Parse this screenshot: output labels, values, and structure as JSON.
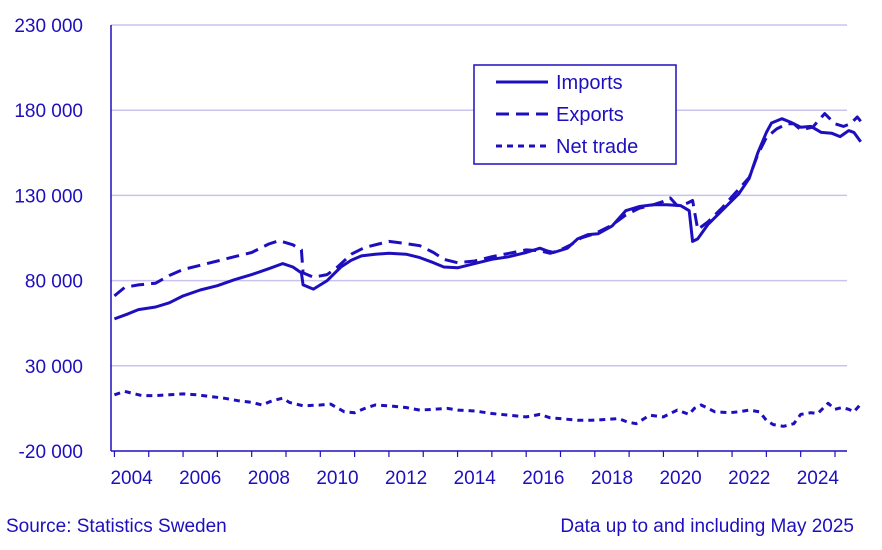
{
  "source": "Source: Statistics Sweden",
  "note": "Data up to and including May 2025",
  "colors": {
    "series": "#1e0fbe",
    "grid": "#c9c4ee",
    "axis": "#1e0fbe"
  },
  "chart_data": {
    "type": "line",
    "title": "",
    "xlabel": "",
    "ylabel": "",
    "xlim": [
      2003.9,
      2025.35
    ],
    "ylim": [
      -20000,
      230000
    ],
    "yticks": [
      -20000,
      30000,
      80000,
      130000,
      180000,
      230000
    ],
    "ytick_labels": [
      "-20 000",
      "30 000",
      "80 000",
      "130 000",
      "180 000",
      "230 000"
    ],
    "xticks": [
      2004,
      2006,
      2008,
      2010,
      2012,
      2014,
      2016,
      2018,
      2020,
      2022,
      2024
    ],
    "grid": "horizontal",
    "legend": "top-center",
    "series": [
      {
        "name": "Imports",
        "style": "solid",
        "points": [
          [
            2004.0,
            57500
          ],
          [
            2004.4,
            60500
          ],
          [
            2004.7,
            63000
          ],
          [
            2005.2,
            64500
          ],
          [
            2005.6,
            67000
          ],
          [
            2006.0,
            71000
          ],
          [
            2006.5,
            74500
          ],
          [
            2007.0,
            77000
          ],
          [
            2007.5,
            80500
          ],
          [
            2008.0,
            83500
          ],
          [
            2008.5,
            87000
          ],
          [
            2008.9,
            90000
          ],
          [
            2009.2,
            88000
          ],
          [
            2009.45,
            84500
          ],
          [
            2009.5,
            77500
          ],
          [
            2009.8,
            75000
          ],
          [
            2010.2,
            80000
          ],
          [
            2010.6,
            88000
          ],
          [
            2010.9,
            92000
          ],
          [
            2011.2,
            94500
          ],
          [
            2011.6,
            95500
          ],
          [
            2012.0,
            96000
          ],
          [
            2012.5,
            95500
          ],
          [
            2012.9,
            93500
          ],
          [
            2013.3,
            90500
          ],
          [
            2013.6,
            88000
          ],
          [
            2014.0,
            87500
          ],
          [
            2014.5,
            90000
          ],
          [
            2015.0,
            92500
          ],
          [
            2015.5,
            94000
          ],
          [
            2016.0,
            96500
          ],
          [
            2016.4,
            99000
          ],
          [
            2016.6,
            97500
          ],
          [
            2016.8,
            96500
          ],
          [
            2017.2,
            99000
          ],
          [
            2017.5,
            104500
          ],
          [
            2017.8,
            107000
          ],
          [
            2018.1,
            107500
          ],
          [
            2018.5,
            112000
          ],
          [
            2018.9,
            121000
          ],
          [
            2019.3,
            123500
          ],
          [
            2019.7,
            124500
          ],
          [
            2020.1,
            124500
          ],
          [
            2020.5,
            124000
          ],
          [
            2020.75,
            121000
          ],
          [
            2020.85,
            103000
          ],
          [
            2021.0,
            104500
          ],
          [
            2021.3,
            113000
          ],
          [
            2021.8,
            123000
          ],
          [
            2022.2,
            131000
          ],
          [
            2022.5,
            140000
          ],
          [
            2022.75,
            155000
          ],
          [
            2023.0,
            167000
          ],
          [
            2023.15,
            172500
          ],
          [
            2023.45,
            175000
          ],
          [
            2023.7,
            173000
          ],
          [
            2024.0,
            170000
          ],
          [
            2024.3,
            170500
          ],
          [
            2024.6,
            167000
          ],
          [
            2024.9,
            166500
          ],
          [
            2025.15,
            164500
          ],
          [
            2025.4,
            168000
          ],
          [
            2025.55,
            167000
          ],
          [
            2025.75,
            161500
          ]
        ]
      },
      {
        "name": "Exports",
        "style": "dashed",
        "points": [
          [
            2004.0,
            71000
          ],
          [
            2004.3,
            76000
          ],
          [
            2004.7,
            77500
          ],
          [
            2005.2,
            78500
          ],
          [
            2005.6,
            83000
          ],
          [
            2006.0,
            86500
          ],
          [
            2006.5,
            89000
          ],
          [
            2007.0,
            91500
          ],
          [
            2007.5,
            94000
          ],
          [
            2008.0,
            96500
          ],
          [
            2008.5,
            101500
          ],
          [
            2008.8,
            103500
          ],
          [
            2009.2,
            101000
          ],
          [
            2009.45,
            98000
          ],
          [
            2009.5,
            84500
          ],
          [
            2009.8,
            82000
          ],
          [
            2010.2,
            83500
          ],
          [
            2010.5,
            88000
          ],
          [
            2010.9,
            95500
          ],
          [
            2011.3,
            99500
          ],
          [
            2011.7,
            101500
          ],
          [
            2012.0,
            103000
          ],
          [
            2012.4,
            102000
          ],
          [
            2012.9,
            100500
          ],
          [
            2013.3,
            96500
          ],
          [
            2013.6,
            92500
          ],
          [
            2014.0,
            90500
          ],
          [
            2014.5,
            91500
          ],
          [
            2015.0,
            94000
          ],
          [
            2015.5,
            96000
          ],
          [
            2016.0,
            98000
          ],
          [
            2016.4,
            97500
          ],
          [
            2016.7,
            96000
          ],
          [
            2017.0,
            98000
          ],
          [
            2017.3,
            101000
          ],
          [
            2017.6,
            105000
          ],
          [
            2018.0,
            107500
          ],
          [
            2018.5,
            112500
          ],
          [
            2018.9,
            118500
          ],
          [
            2019.3,
            122500
          ],
          [
            2019.7,
            124500
          ],
          [
            2020.0,
            126500
          ],
          [
            2020.2,
            128500
          ],
          [
            2020.4,
            124000
          ],
          [
            2020.7,
            125500
          ],
          [
            2020.85,
            127000
          ],
          [
            2021.0,
            110000
          ],
          [
            2021.3,
            114500
          ],
          [
            2021.7,
            122500
          ],
          [
            2022.1,
            131500
          ],
          [
            2022.5,
            140500
          ],
          [
            2022.75,
            154000
          ],
          [
            2023.0,
            164000
          ],
          [
            2023.3,
            169000
          ],
          [
            2023.6,
            172000
          ],
          [
            2023.8,
            172000
          ],
          [
            2024.0,
            168500
          ],
          [
            2024.35,
            170000
          ],
          [
            2024.7,
            178000
          ],
          [
            2025.0,
            172000
          ],
          [
            2025.25,
            170500
          ],
          [
            2025.45,
            172000
          ],
          [
            2025.65,
            176000
          ],
          [
            2025.75,
            173500
          ]
        ]
      },
      {
        "name": "Net trade",
        "style": "dotted",
        "points": [
          [
            2004.0,
            13000
          ],
          [
            2004.3,
            15000
          ],
          [
            2004.8,
            12500
          ],
          [
            2005.2,
            12500
          ],
          [
            2005.6,
            13000
          ],
          [
            2006.0,
            13500
          ],
          [
            2006.4,
            13000
          ],
          [
            2006.8,
            12000
          ],
          [
            2007.2,
            11000
          ],
          [
            2007.6,
            9500
          ],
          [
            2008.0,
            8500
          ],
          [
            2008.3,
            7000
          ],
          [
            2008.6,
            9500
          ],
          [
            2008.9,
            11000
          ],
          [
            2009.1,
            8500
          ],
          [
            2009.5,
            6500
          ],
          [
            2010.0,
            7000
          ],
          [
            2010.3,
            7500
          ],
          [
            2010.7,
            3000
          ],
          [
            2011.0,
            2500
          ],
          [
            2011.3,
            5000
          ],
          [
            2011.6,
            7000
          ],
          [
            2012.0,
            6500
          ],
          [
            2012.5,
            5500
          ],
          [
            2012.9,
            4000
          ],
          [
            2013.3,
            4500
          ],
          [
            2013.7,
            5000
          ],
          [
            2014.0,
            4000
          ],
          [
            2014.5,
            3500
          ],
          [
            2015.0,
            2000
          ],
          [
            2015.5,
            1000
          ],
          [
            2016.0,
            0
          ],
          [
            2016.4,
            1500
          ],
          [
            2016.7,
            -500
          ],
          [
            2017.0,
            -1000
          ],
          [
            2017.5,
            -2000
          ],
          [
            2017.9,
            -2000
          ],
          [
            2018.3,
            -1500
          ],
          [
            2018.7,
            -1000
          ],
          [
            2018.95,
            -3000
          ],
          [
            2019.2,
            -4000
          ],
          [
            2019.6,
            1000
          ],
          [
            2020.0,
            0
          ],
          [
            2020.4,
            4000
          ],
          [
            2020.75,
            1500
          ],
          [
            2020.9,
            5000
          ],
          [
            2021.1,
            7000
          ],
          [
            2021.5,
            3000
          ],
          [
            2021.9,
            2500
          ],
          [
            2022.2,
            3000
          ],
          [
            2022.5,
            4000
          ],
          [
            2022.8,
            3000
          ],
          [
            2023.0,
            -2000
          ],
          [
            2023.2,
            -4500
          ],
          [
            2023.5,
            -5500
          ],
          [
            2023.8,
            -4000
          ],
          [
            2024.0,
            1500
          ],
          [
            2024.3,
            2500
          ],
          [
            2024.5,
            2000
          ],
          [
            2024.8,
            8000
          ],
          [
            2025.0,
            4500
          ],
          [
            2025.2,
            5500
          ],
          [
            2025.4,
            4500
          ],
          [
            2025.55,
            3000
          ],
          [
            2025.75,
            7500
          ]
        ]
      }
    ]
  }
}
